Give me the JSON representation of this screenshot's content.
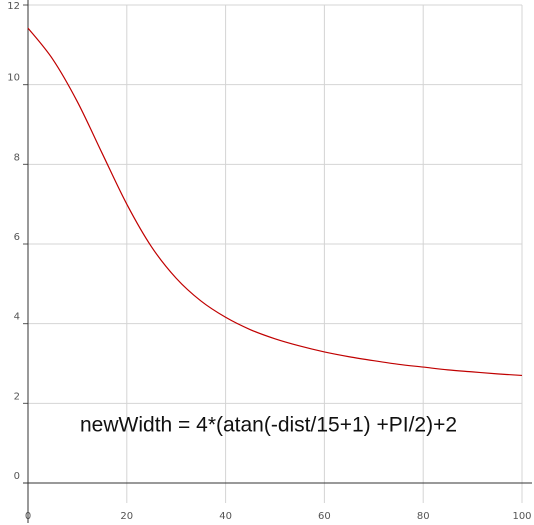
{
  "chart_data": {
    "type": "line",
    "annotation": "newWidth = 4*(atan(-dist/15+1) +PI/2)+2",
    "x": [
      0,
      5,
      10,
      15,
      20,
      25,
      30,
      35,
      40,
      45,
      50,
      55,
      60,
      65,
      70,
      75,
      80,
      85,
      90,
      95,
      100
    ],
    "series": [
      {
        "color": "#c00000",
        "values": [
          11.42,
          10.64,
          9.57,
          8.28,
          7.0,
          5.93,
          5.14,
          4.57,
          4.16,
          3.85,
          3.62,
          3.44,
          3.29,
          3.17,
          3.07,
          2.98,
          2.91,
          2.84,
          2.79,
          2.74,
          2.7
        ]
      }
    ],
    "xlim": [
      0,
      100
    ],
    "xticks": [
      0,
      20,
      40,
      60,
      80,
      100
    ],
    "ylim": [
      0,
      12
    ],
    "yticks": [
      0,
      2,
      4,
      6,
      8,
      10,
      12
    ],
    "grid": true
  }
}
